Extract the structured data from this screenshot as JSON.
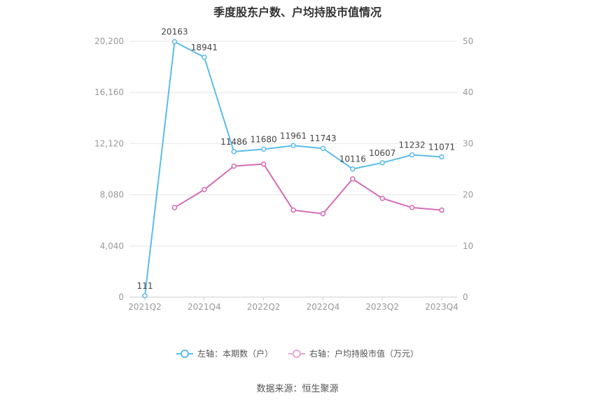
{
  "title": "季度股东户数、户均持股市值情况",
  "source": "数据来源：恒生聚源",
  "colors": {
    "left": "#5bbcec",
    "right": "#d46bb5",
    "grid": "#e6e6e6",
    "axis": "#999999"
  },
  "legend": {
    "left_label": "左轴：本期数（户）",
    "right_label": "右轴：户均持股市值（万元）"
  },
  "chart_data": {
    "type": "line",
    "categories": [
      "2021Q2",
      "2021Q3",
      "2021Q4",
      "2022Q1",
      "2022Q2",
      "2022Q3",
      "2022Q4",
      "2023Q1",
      "2023Q2",
      "2023Q3",
      "2023Q4"
    ],
    "x_tick_labels": [
      "2021Q2",
      "2021Q4",
      "2022Q2",
      "2022Q4",
      "2023Q2",
      "2023Q4"
    ],
    "y_left": {
      "ticks": [
        0,
        4040,
        8080,
        12120,
        16160,
        20200
      ],
      "tick_labels": [
        "0",
        "4,040",
        "8,080",
        "12,120",
        "16,160",
        "20,200"
      ],
      "ylim": [
        0,
        20200
      ]
    },
    "y_right": {
      "ticks": [
        0,
        10,
        20,
        30,
        40,
        50
      ],
      "tick_labels": [
        "0",
        "10",
        "20",
        "30",
        "40",
        "50"
      ],
      "ylim": [
        0,
        50
      ]
    },
    "grid": true,
    "legend_position": "bottom",
    "series": [
      {
        "name": "左轴：本期数（户）",
        "axis": "left",
        "values": [
          111,
          20163,
          18941,
          11486,
          11680,
          11961,
          11743,
          10116,
          10607,
          11232,
          11071
        ],
        "labels": [
          "111",
          "20163",
          "18941",
          "11486",
          "11680",
          "11961",
          "11743",
          "10116",
          "10607",
          "11232",
          "11071"
        ]
      },
      {
        "name": "右轴：户均持股市值（万元）",
        "axis": "right",
        "values": [
          null,
          17.5,
          21.0,
          25.6,
          26.0,
          17.0,
          16.3,
          23.1,
          19.3,
          17.5,
          17.0
        ]
      }
    ]
  }
}
